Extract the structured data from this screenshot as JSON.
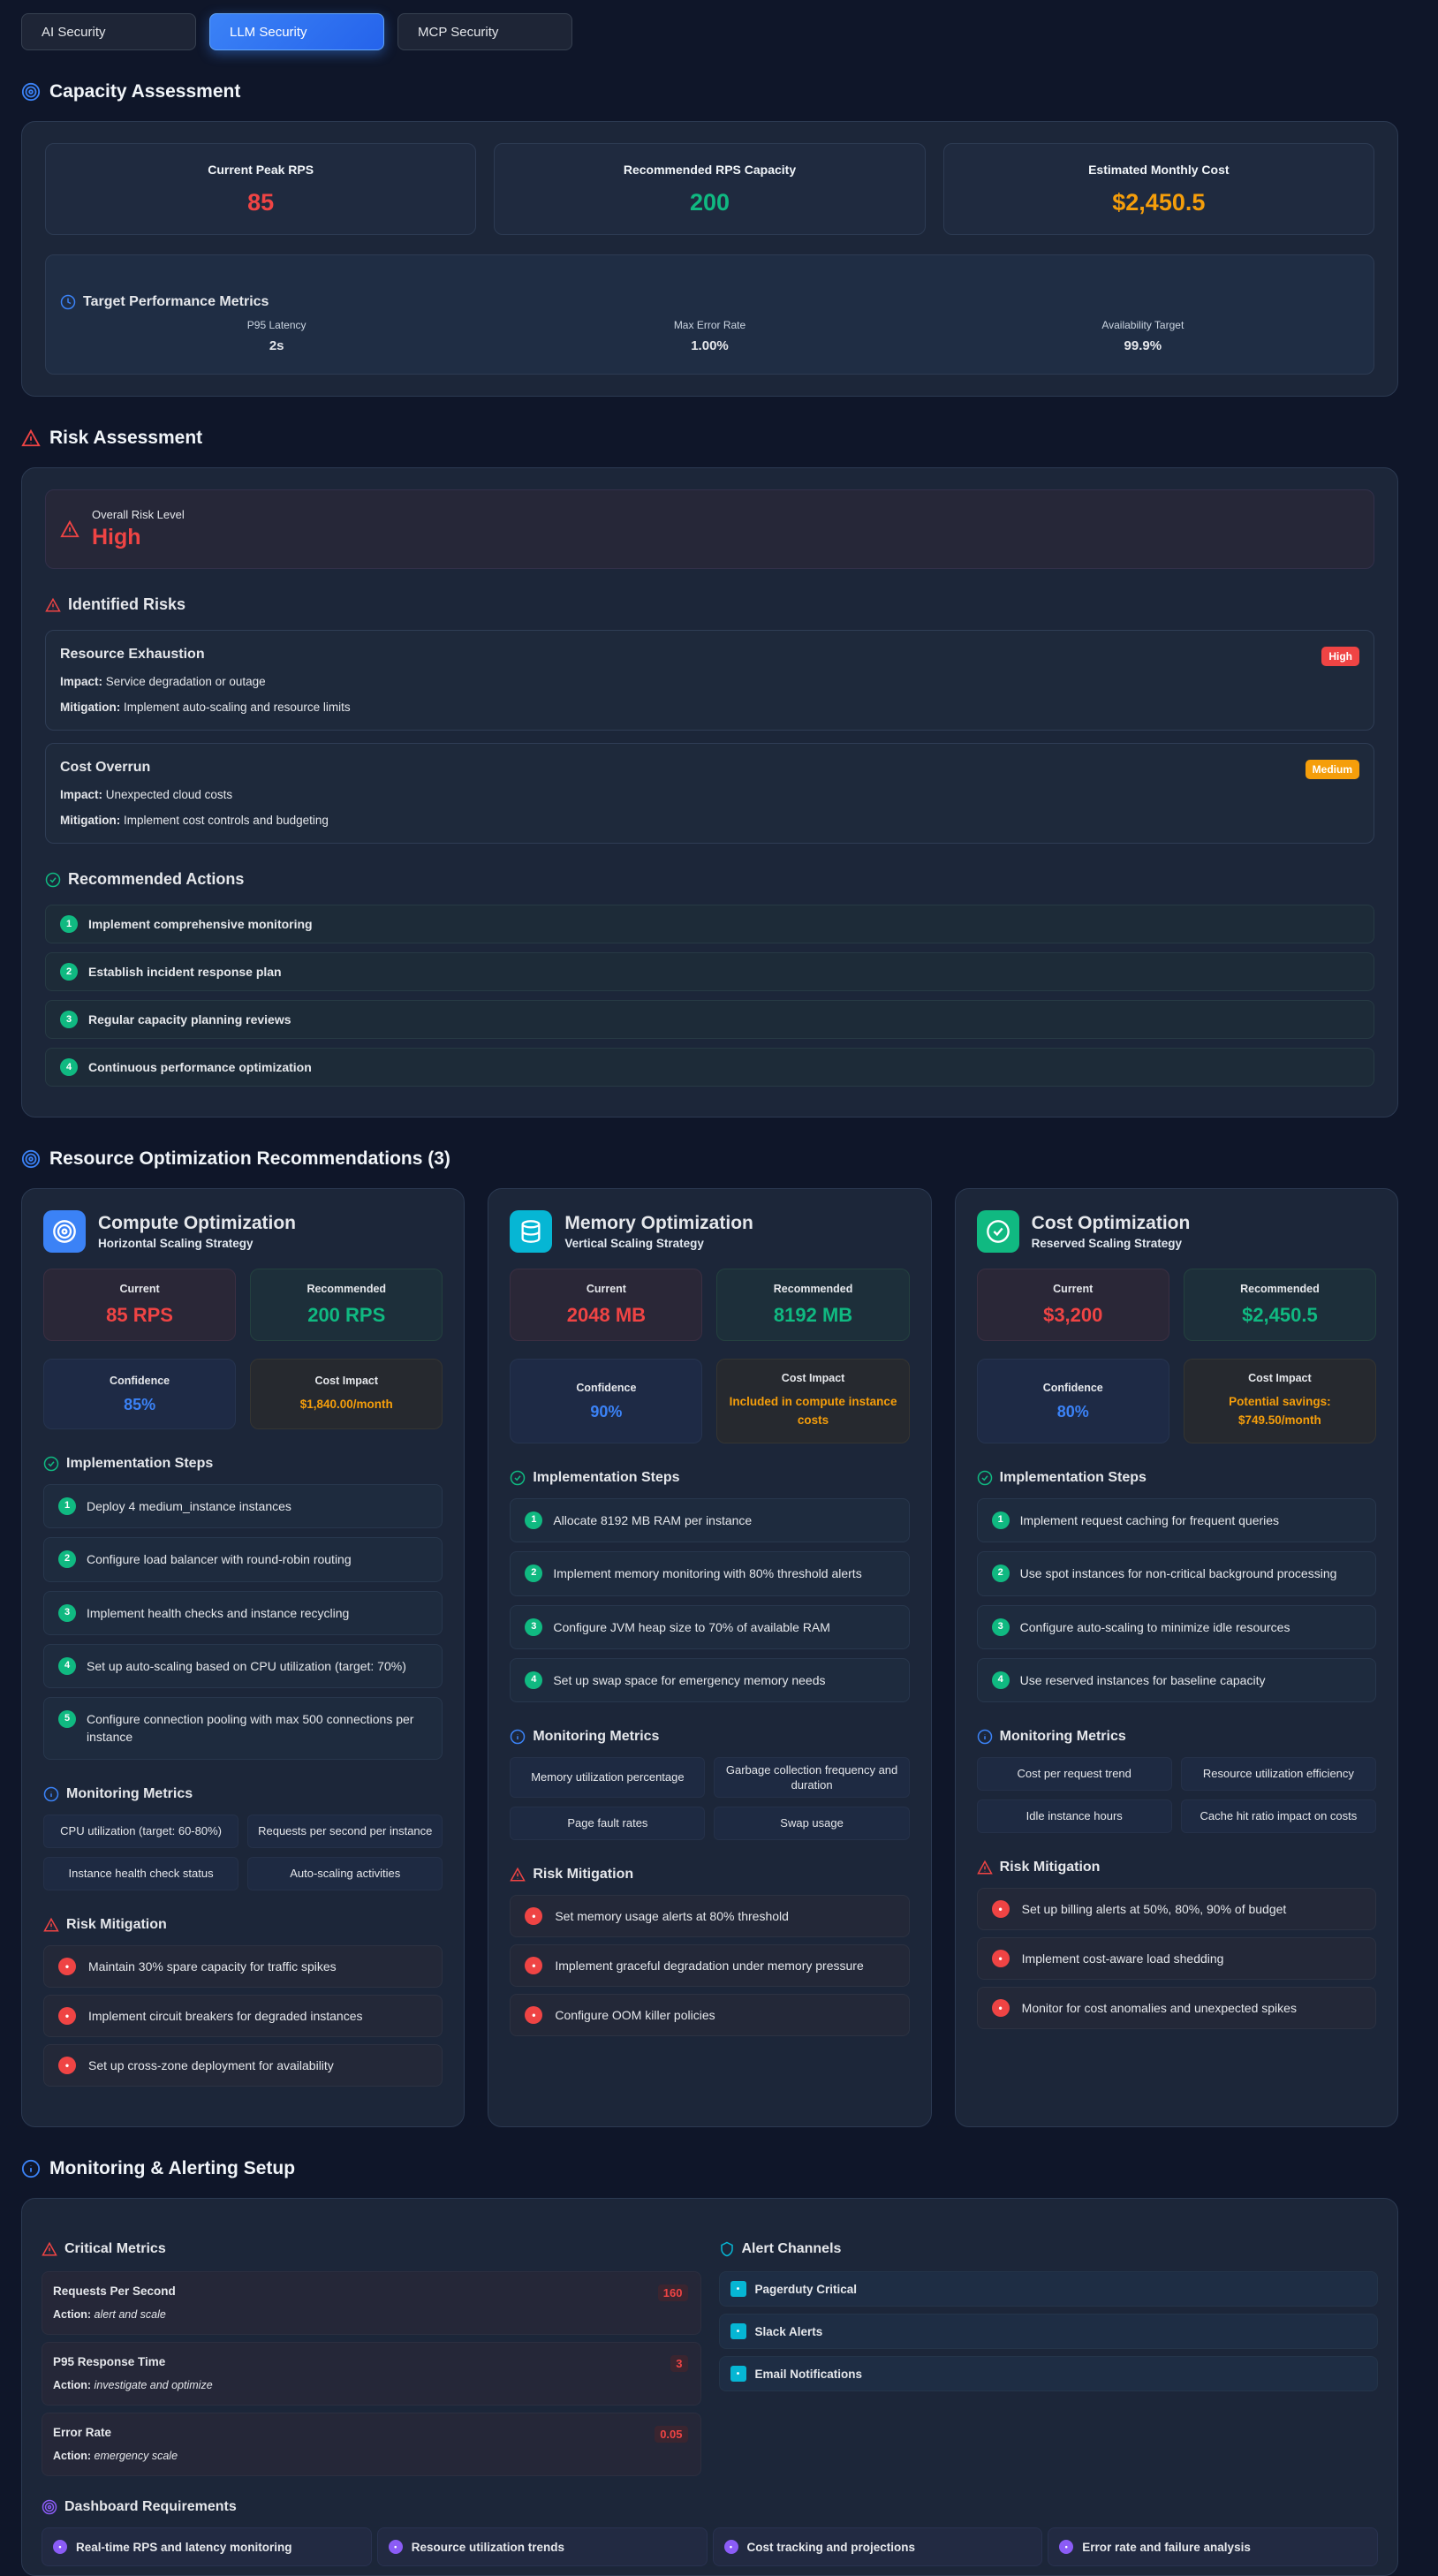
{
  "tabs": [
    {
      "label": "AI Security",
      "active": false
    },
    {
      "label": "LLM Security",
      "active": true
    },
    {
      "label": "MCP Security",
      "active": false
    }
  ],
  "capacity": {
    "title": "Capacity Assessment",
    "stats": [
      {
        "label": "Current Peak RPS",
        "value": "85",
        "color": "#ef4444"
      },
      {
        "label": "Recommended RPS Capacity",
        "value": "200",
        "color": "#10b981"
      },
      {
        "label": "Estimated Monthly Cost",
        "value": "$2,450.5",
        "color": "#f59e0b"
      }
    ],
    "performance": {
      "title": "Target Performance Metrics",
      "metrics": [
        {
          "label": "P95 Latency",
          "value": "2s"
        },
        {
          "label": "Max Error Rate",
          "value": "1.00%"
        },
        {
          "label": "Availability Target",
          "value": "99.9%"
        }
      ]
    }
  },
  "risk": {
    "title": "Risk Assessment",
    "overall_label": "Overall Risk Level",
    "overall_value": "High",
    "identified_title": "Identified Risks",
    "impact_label": "Impact:",
    "mitigation_label": "Mitigation:",
    "risks": [
      {
        "name": "Resource Exhaustion",
        "severity": "High",
        "severity_color": "#ef4444",
        "impact": "Service degradation or outage",
        "mitigation": "Implement auto-scaling and resource limits"
      },
      {
        "name": "Cost Overrun",
        "severity": "Medium",
        "severity_color": "#f59e0b",
        "impact": "Unexpected cloud costs",
        "mitigation": "Implement cost controls and budgeting"
      }
    ],
    "actions_title": "Recommended Actions",
    "actions": [
      "Implement comprehensive monitoring",
      "Establish incident response plan",
      "Regular capacity planning reviews",
      "Continuous performance optimization"
    ]
  },
  "optimization": {
    "title": "Resource Optimization Recommendations (3)",
    "labels": {
      "current": "Current",
      "recommended": "Recommended",
      "confidence": "Confidence",
      "cost_impact": "Cost Impact",
      "steps": "Implementation Steps",
      "metrics": "Monitoring Metrics",
      "mitigation": "Risk Mitigation"
    },
    "cards": [
      {
        "title": "Compute Optimization",
        "subtitle": "Horizontal Scaling Strategy",
        "icon": "target-icon",
        "color": "#3b82f6",
        "current": "85 RPS",
        "recommended": "200 RPS",
        "confidence": "85%",
        "cost_impact": "$1,840.00/month",
        "steps": [
          "Deploy 4 medium_instance instances",
          "Configure load balancer with round-robin routing",
          "Implement health checks and instance recycling",
          "Set up auto-scaling based on CPU utilization (target: 70%)",
          "Configure connection pooling with max 500 connections per instance"
        ],
        "metrics": [
          "CPU utilization (target: 60-80%)",
          "Requests per second per instance",
          "Instance health check status",
          "Auto-scaling activities"
        ],
        "mitigations": [
          "Maintain 30% spare capacity for traffic spikes",
          "Implement circuit breakers for degraded instances",
          "Set up cross-zone deployment for availability"
        ]
      },
      {
        "title": "Memory Optimization",
        "subtitle": "Vertical Scaling Strategy",
        "icon": "database-icon",
        "color": "#06b6d4",
        "current": "2048 MB",
        "recommended": "8192 MB",
        "confidence": "90%",
        "cost_impact": "Included in compute instance costs",
        "steps": [
          "Allocate 8192 MB RAM per instance",
          "Implement memory monitoring with 80% threshold alerts",
          "Configure JVM heap size to 70% of available RAM",
          "Set up swap space for emergency memory needs"
        ],
        "metrics": [
          "Memory utilization percentage",
          "Garbage collection frequency and duration",
          "Page fault rates",
          "Swap usage"
        ],
        "mitigations": [
          "Set memory usage alerts at 80% threshold",
          "Implement graceful degradation under memory pressure",
          "Configure OOM killer policies"
        ]
      },
      {
        "title": "Cost Optimization",
        "subtitle": "Reserved Scaling Strategy",
        "icon": "check-circle-icon",
        "color": "#10b981",
        "current": "$3,200",
        "recommended": "$2,450.5",
        "confidence": "80%",
        "cost_impact": "Potential savings: $749.50/month",
        "steps": [
          "Implement request caching for frequent queries",
          "Use spot instances for non-critical background processing",
          "Configure auto-scaling to minimize idle resources",
          "Use reserved instances for baseline capacity"
        ],
        "metrics": [
          "Cost per request trend",
          "Resource utilization efficiency",
          "Idle instance hours",
          "Cache hit ratio impact on costs"
        ],
        "mitigations": [
          "Set up billing alerts at 50%, 80%, 90% of budget",
          "Implement cost-aware load shedding",
          "Monitor for cost anomalies and unexpected spikes"
        ]
      }
    ]
  },
  "monitoring": {
    "title": "Monitoring & Alerting Setup",
    "critical_title": "Critical Metrics",
    "action_label": "Action:",
    "critical": [
      {
        "name": "Requests Per Second",
        "value": "160",
        "action": "alert and scale"
      },
      {
        "name": "P95 Response Time",
        "value": "3",
        "action": "investigate and optimize"
      },
      {
        "name": "Error Rate",
        "value": "0.05",
        "action": "emergency scale"
      }
    ],
    "channels_title": "Alert Channels",
    "channels": [
      "Pagerduty Critical",
      "Slack Alerts",
      "Email Notifications"
    ],
    "dashboard_title": "Dashboard Requirements",
    "dashboard": [
      "Real-time RPS and latency monitoring",
      "Resource utilization trends",
      "Cost tracking and projections",
      "Error rate and failure analysis"
    ]
  }
}
